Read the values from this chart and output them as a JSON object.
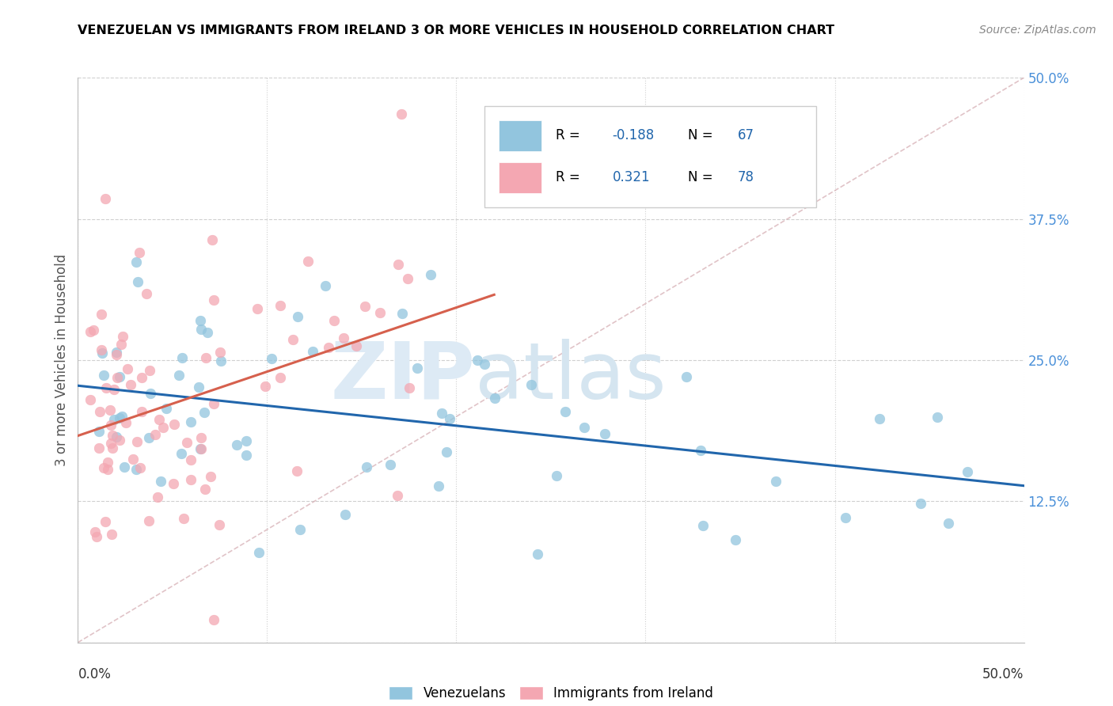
{
  "title": "VENEZUELAN VS IMMIGRANTS FROM IRELAND 3 OR MORE VEHICLES IN HOUSEHOLD CORRELATION CHART",
  "source": "Source: ZipAtlas.com",
  "ylabel": "3 or more Vehicles in Household",
  "xlim": [
    0.0,
    0.5
  ],
  "ylim": [
    0.0,
    0.5
  ],
  "blue_color": "#92c5de",
  "pink_color": "#f4a7b2",
  "blue_line_color": "#2166ac",
  "pink_line_color": "#d6604d",
  "ref_line_color": "#d4aab0",
  "grid_color": "#d0d0d0",
  "ytick_color": "#4a90d9",
  "watermark_zip_color": "#dde8f0",
  "watermark_atlas_color": "#d8e4ec",
  "n_blue": 67,
  "n_pink": 78
}
